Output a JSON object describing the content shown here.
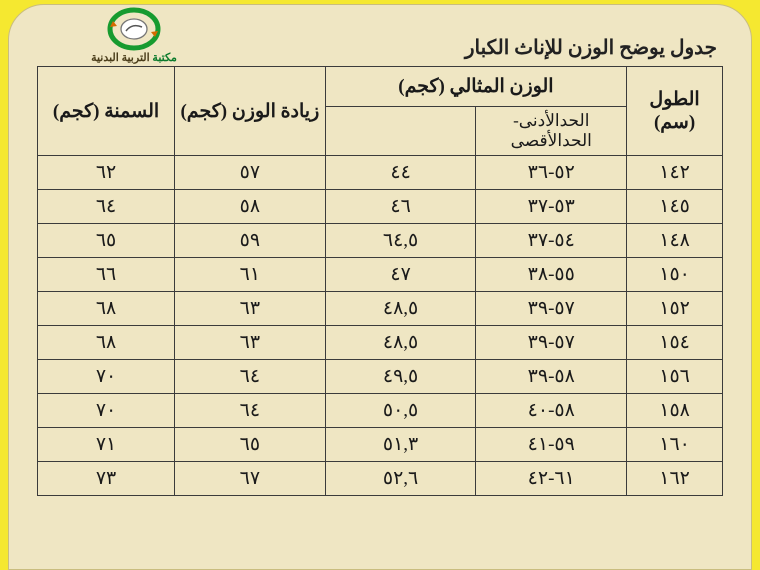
{
  "logo": {
    "text_green": "مكتبة",
    "text_brown": " التربية البدنية",
    "ring_color": "#179b2f",
    "arrow_color": "#d46a00",
    "inner_stroke": "#555"
  },
  "title": "جدول يوضح الوزن للإناث الكبار",
  "table": {
    "headers": {
      "height": "الطول (سم)",
      "ideal_weight": "الوزن المثالي (كجم)",
      "overweight": "زيادة الوزن (كجم)",
      "obesity": "السمنة (كجم)"
    },
    "subheader": {
      "min_max": "الحدالأدنى-الحدالأقصى",
      "blank": ""
    },
    "rows": [
      {
        "height": "١٤٢",
        "range": "٥٢-٣٦",
        "ideal": "٤٤",
        "over": "٥٧",
        "obese": "٦٢"
      },
      {
        "height": "١٤٥",
        "range": "٥٣-٣٧",
        "ideal": "٤٦",
        "over": "٥٨",
        "obese": "٦٤"
      },
      {
        "height": "١٤٨",
        "range": "٥٤-٣٧",
        "ideal": "٦٤,٥",
        "over": "٥٩",
        "obese": "٦٥"
      },
      {
        "height": "١٥٠",
        "range": "٥٥-٣٨",
        "ideal": "٤٧",
        "over": "٦١",
        "obese": "٦٦"
      },
      {
        "height": "١٥٢",
        "range": "٥٧-٣٩",
        "ideal": "٤٨,٥",
        "over": "٦٣",
        "obese": "٦٨"
      },
      {
        "height": "١٥٤",
        "range": "٥٧-٣٩",
        "ideal": "٤٨,٥",
        "over": "٦٣",
        "obese": "٦٨"
      },
      {
        "height": "١٥٦",
        "range": "٥٨-٣٩",
        "ideal": "٤٩,٥",
        "over": "٦٤",
        "obese": "٧٠"
      },
      {
        "height": "١٥٨",
        "range": "٥٨-٤٠",
        "ideal": "٥٠,٥",
        "over": "٦٤",
        "obese": "٧٠"
      },
      {
        "height": "١٦٠",
        "range": "٥٩-٤١",
        "ideal": "٥١,٣",
        "over": "٦٥",
        "obese": "٧١"
      },
      {
        "height": "١٦٢",
        "range": "٦١-٤٢",
        "ideal": "٥٢,٦",
        "over": "٦٧",
        "obese": "٧٣"
      }
    ]
  },
  "colors": {
    "page_bg": "#efe6c3",
    "outer_bg": "#f5e830",
    "border": "#3b3b3b",
    "text": "#1a1a1a"
  }
}
